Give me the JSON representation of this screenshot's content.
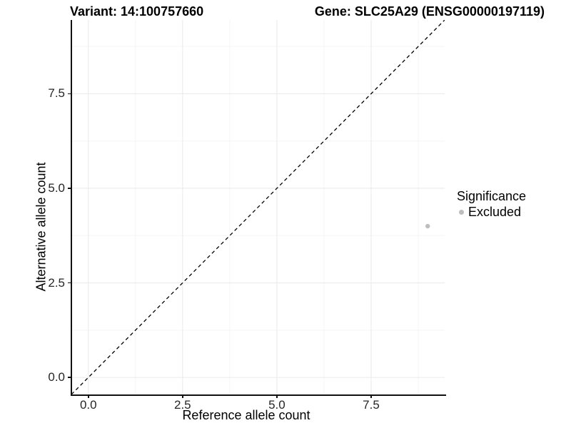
{
  "chart_data": {
    "type": "scatter",
    "titles": {
      "left": "Variant: 14:100757660",
      "right": "Gene: SLC25A29 (ENSG00000197119)"
    },
    "xlabel": "Reference allele count",
    "ylabel": "Alternative allele count",
    "xlim": [
      -0.45,
      9.45
    ],
    "ylim": [
      -0.45,
      9.45
    ],
    "xticks": {
      "values": [
        0,
        2.5,
        5,
        7.5
      ],
      "labels": [
        "0.0",
        "2.5",
        "5.0",
        "7.5"
      ]
    },
    "yticks": {
      "values": [
        0,
        2.5,
        5,
        7.5
      ],
      "labels": [
        "0.0",
        "2.5",
        "5.0",
        "7.5"
      ]
    },
    "minor_gridlines": [
      1.25,
      3.75,
      6.25,
      8.75
    ],
    "grid": "major and minor gridlines, very light gray on white panel",
    "identity_line": {
      "equation": "y = x",
      "style": "dashed",
      "color": "#000000"
    },
    "series": [
      {
        "name": "Excluded",
        "color": "#bebebe",
        "point_radius": 3.2,
        "points": [
          {
            "x": 9,
            "y": 4
          }
        ]
      }
    ],
    "legend": {
      "position": "right",
      "title": "Significance",
      "items": [
        {
          "label": "Excluded",
          "color": "#bebebe",
          "marker": "circle"
        }
      ]
    }
  },
  "colors": {
    "background": "#ffffff",
    "axis_line": "#111111",
    "tick_label": "#262626",
    "grid_major": "#ebebeb",
    "grid_minor": "#f5f5f5",
    "point": "#bebebe",
    "identity_line": "#000000"
  }
}
